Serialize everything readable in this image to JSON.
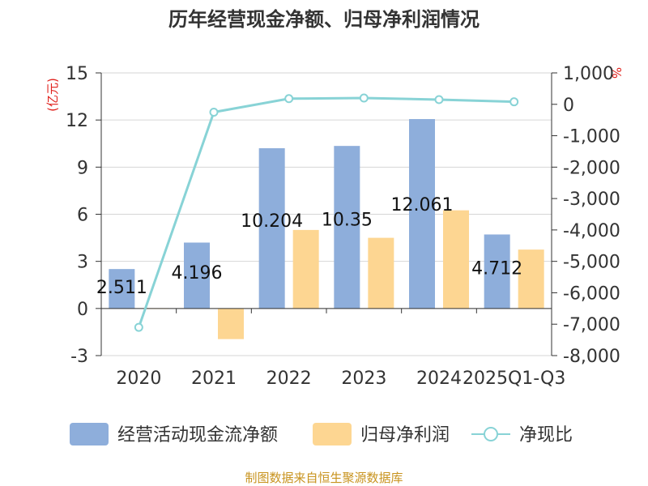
{
  "chart_data": {
    "type": "bar",
    "title": "历年经营现金净额、归母净利润情况",
    "categories": [
      "2020",
      "2021",
      "2022",
      "2023",
      "2024",
      "2025Q1-Q3"
    ],
    "series": [
      {
        "name": "经营活动现金流净额",
        "type": "bar",
        "axis": "left",
        "color": "#8eaedb",
        "values": [
          2.511,
          4.196,
          10.204,
          10.35,
          12.061,
          4.712
        ],
        "labels": [
          "2.511",
          "4.196",
          "10.204",
          "10.35",
          "12.061",
          "4.712"
        ]
      },
      {
        "name": "归母净利润",
        "type": "bar",
        "axis": "left",
        "color": "#fdd692",
        "values": [
          0.02,
          -1.95,
          5.0,
          4.5,
          6.25,
          3.75
        ]
      },
      {
        "name": "净现比",
        "type": "line",
        "axis": "right",
        "color": "#88d3d6",
        "values": [
          -7100,
          -250,
          180,
          200,
          150,
          80
        ]
      }
    ],
    "y_left": {
      "label": "(亿元)",
      "min": -3,
      "max": 15,
      "ticks": [
        -3,
        0,
        3,
        6,
        9,
        12,
        15
      ]
    },
    "y_right": {
      "label": "%",
      "min": -8000,
      "max": 1000,
      "ticks": [
        1000,
        0,
        -1000,
        -2000,
        -3000,
        -4000,
        -5000,
        -6000,
        -7000,
        -8000
      ],
      "tick_labels": [
        "1,000",
        "0",
        "-1,000",
        "-2,000",
        "-3,000",
        "-4,000",
        "-5,000",
        "-6,000",
        "-7,000",
        "-8,000"
      ]
    },
    "legend": [
      "经营活动现金流净额",
      "归母净利润",
      "净现比"
    ],
    "legend_position": "bottom",
    "source": "制图数据来自恒生聚源数据库"
  }
}
